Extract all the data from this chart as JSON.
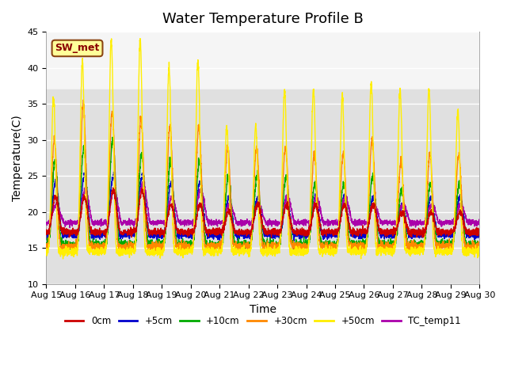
{
  "title": "Water Temperature Profile B",
  "xlabel": "Time",
  "ylabel": "Temperature(C)",
  "ylim": [
    10,
    45
  ],
  "x_tick_labels": [
    "Aug 15",
    "Aug 16",
    "Aug 17",
    "Aug 18",
    "Aug 19",
    "Aug 20",
    "Aug 21",
    "Aug 22",
    "Aug 23",
    "Aug 24",
    "Aug 25",
    "Aug 26",
    "Aug 27",
    "Aug 28",
    "Aug 29",
    "Aug 30"
  ],
  "annotation_text": "SW_met",
  "annotation_bg": "#FFFF99",
  "annotation_border": "#8B4513",
  "legend_entries": [
    "0cm",
    "+5cm",
    "+10cm",
    "+30cm",
    "+50cm",
    "TC_temp11"
  ],
  "line_colors": [
    "#CC0000",
    "#0000CC",
    "#00AA00",
    "#FF8800",
    "#FFEE00",
    "#AA00AA"
  ],
  "background_color": "#F0F0F0",
  "shade_top": "#E8E8E8",
  "shade_bottom": "#CCCCCC",
  "title_fontsize": 13,
  "axis_fontsize": 10,
  "tick_fontsize": 8,
  "yticks": [
    10,
    15,
    20,
    25,
    30,
    35,
    40,
    45
  ]
}
